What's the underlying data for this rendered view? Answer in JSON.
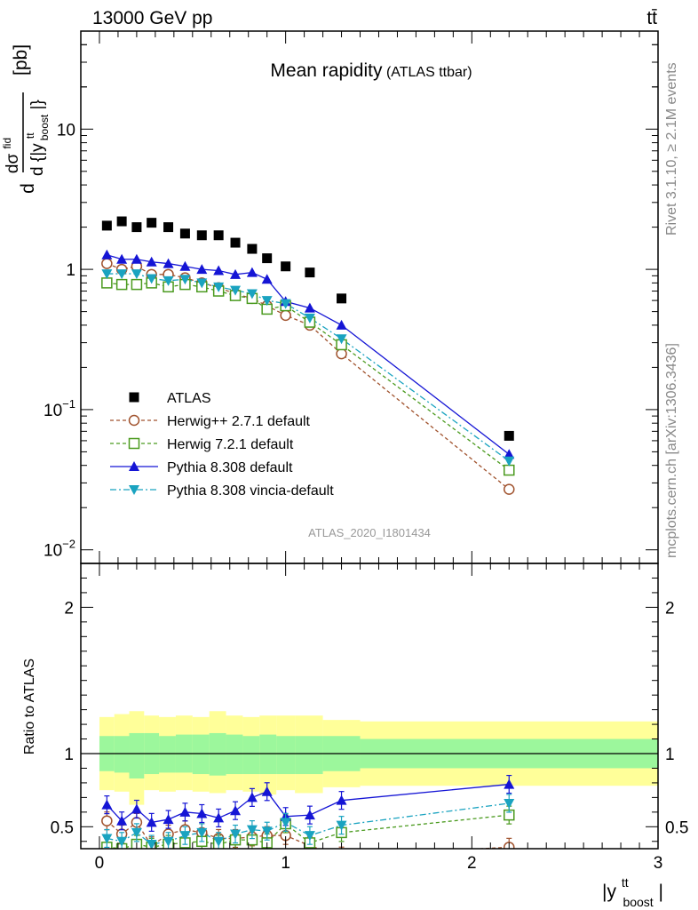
{
  "header": {
    "energy": "13000 GeV pp",
    "process": "tt̄",
    "side_rivet": "Rivet 3.1.10, ≥ 2.1M events",
    "side_site": "mcplots.cern.ch [arXiv:1306.3436]"
  },
  "chart_data": [
    {
      "type": "line",
      "title": "Mean rapidity",
      "subtitle": "(ATLAS ttbar)",
      "analysis": "ATLAS_2020_I1801434",
      "ylabel_parts": {
        "d": "d",
        "sigma": "dσ",
        "sigma_sup": "fid",
        "denom": "d {|y",
        "denom_sup": "tt",
        "denom_sub": "boost",
        "denom_end": "|}",
        "unit": "[pb]"
      },
      "xlabel_parts": {
        "main": "|y",
        "sup": "tt",
        "sub": "boost",
        "end": "|"
      },
      "yscale": "log",
      "xlim": [
        -0.1,
        3.0
      ],
      "ylim": [
        0.008,
        50
      ],
      "yticks": [
        {
          "v": 0.01,
          "base": "10",
          "exp": "−2"
        },
        {
          "v": 0.1,
          "base": "10",
          "exp": "−1"
        },
        {
          "v": 1,
          "base": "1",
          "exp": ""
        },
        {
          "v": 10,
          "base": "10",
          "exp": ""
        }
      ],
      "xticks": [
        0,
        1,
        2,
        3
      ],
      "x": [
        0.04,
        0.12,
        0.2,
        0.28,
        0.37,
        0.46,
        0.55,
        0.64,
        0.73,
        0.82,
        0.9,
        1.0,
        1.13,
        1.3,
        2.2
      ],
      "series": [
        {
          "name": "ATLAS",
          "color": "#000000",
          "marker": "square-filled",
          "line": "none",
          "values": [
            2.05,
            2.2,
            2.0,
            2.15,
            2.0,
            1.8,
            1.75,
            1.75,
            1.55,
            1.4,
            1.2,
            1.05,
            0.95,
            0.62,
            0.065
          ]
        },
        {
          "name": "Herwig++ 2.7.1 default",
          "color": "#a0522d",
          "marker": "circle-open",
          "line": "dashed",
          "values": [
            1.1,
            1.0,
            1.05,
            0.92,
            0.92,
            0.87,
            0.8,
            0.74,
            0.67,
            0.62,
            0.55,
            0.47,
            0.4,
            0.25,
            0.027
          ]
        },
        {
          "name": "Herwig 7.2.1 default",
          "color": "#4a9a1e",
          "marker": "square-open",
          "line": "dashed",
          "values": [
            0.8,
            0.78,
            0.78,
            0.8,
            0.75,
            0.78,
            0.75,
            0.7,
            0.65,
            0.62,
            0.52,
            0.55,
            0.42,
            0.29,
            0.037
          ]
        },
        {
          "name": "Pythia 8.308 default",
          "color": "#1515d5",
          "marker": "triangle-up",
          "line": "solid",
          "values": [
            1.27,
            1.18,
            1.18,
            1.13,
            1.1,
            1.05,
            1.0,
            0.98,
            0.92,
            0.95,
            0.85,
            0.59,
            0.53,
            0.4,
            0.048
          ]
        },
        {
          "name": "Pythia 8.308 vincia-default",
          "color": "#1aa3c0",
          "marker": "triangle-down",
          "line": "dashdot",
          "values": [
            0.93,
            0.93,
            0.93,
            0.86,
            0.83,
            0.85,
            0.8,
            0.75,
            0.71,
            0.67,
            0.6,
            0.57,
            0.45,
            0.32,
            0.043
          ]
        }
      ]
    },
    {
      "type": "line",
      "ylabel": "Ratio to ATLAS",
      "ylim": [
        0.35,
        2.3
      ],
      "yticks": [
        0.5,
        1,
        2
      ],
      "xlim": [
        -0.1,
        3.0
      ],
      "xticks": [
        0,
        1,
        2,
        3
      ],
      "x": [
        0.04,
        0.12,
        0.2,
        0.28,
        0.37,
        0.46,
        0.55,
        0.64,
        0.73,
        0.82,
        0.9,
        1.0,
        1.13,
        1.3,
        2.2
      ],
      "band_edges": [
        0.0,
        0.08,
        0.16,
        0.24,
        0.32,
        0.41,
        0.5,
        0.59,
        0.68,
        0.77,
        0.86,
        0.95,
        1.05,
        1.2,
        1.4,
        3.0
      ],
      "band_inner": [
        [
          0.88,
          1.12
        ],
        [
          0.87,
          1.12
        ],
        [
          0.83,
          1.14
        ],
        [
          0.86,
          1.14
        ],
        [
          0.87,
          1.12
        ],
        [
          0.87,
          1.13
        ],
        [
          0.86,
          1.13
        ],
        [
          0.85,
          1.14
        ],
        [
          0.86,
          1.13
        ],
        [
          0.86,
          1.12
        ],
        [
          0.86,
          1.13
        ],
        [
          0.86,
          1.12
        ],
        [
          0.86,
          1.12
        ],
        [
          0.88,
          1.12
        ],
        [
          0.9,
          1.1
        ]
      ],
      "band_outer": [
        [
          0.75,
          1.25
        ],
        [
          0.74,
          1.27
        ],
        [
          0.65,
          1.29
        ],
        [
          0.75,
          1.26
        ],
        [
          0.74,
          1.25
        ],
        [
          0.75,
          1.26
        ],
        [
          0.74,
          1.25
        ],
        [
          0.73,
          1.29
        ],
        [
          0.75,
          1.26
        ],
        [
          0.74,
          1.25
        ],
        [
          0.72,
          1.26
        ],
        [
          0.75,
          1.26
        ],
        [
          0.73,
          1.26
        ],
        [
          0.77,
          1.23
        ],
        [
          0.78,
          1.22
        ]
      ],
      "series": [
        {
          "name": "Herwig++ 2.7.1 default",
          "color": "#a0522d",
          "marker": "circle-open",
          "line": "dashed",
          "values": [
            0.54,
            0.45,
            0.53,
            0.37,
            0.45,
            0.48,
            0.46,
            0.42,
            0.42,
            0.43,
            0.44,
            0.44,
            0.37,
            0.3,
            0.36
          ]
        },
        {
          "name": "Herwig 7.2.1 default",
          "color": "#4a9a1e",
          "marker": "square-open",
          "line": "dashed",
          "values": [
            0.36,
            0.35,
            0.38,
            0.36,
            0.38,
            0.39,
            0.4,
            0.38,
            0.41,
            0.41,
            0.39,
            0.52,
            0.39,
            0.46,
            0.58
          ]
        },
        {
          "name": "Pythia 8.308 default",
          "color": "#1515d5",
          "marker": "triangle-up",
          "line": "solid",
          "values": [
            0.65,
            0.54,
            0.62,
            0.53,
            0.55,
            0.6,
            0.59,
            0.56,
            0.61,
            0.7,
            0.74,
            0.57,
            0.58,
            0.68,
            0.79
          ]
        },
        {
          "name": "Pythia 8.308 vincia-default",
          "color": "#1aa3c0",
          "marker": "triangle-down",
          "line": "dashdot",
          "values": [
            0.42,
            0.4,
            0.46,
            0.38,
            0.4,
            0.44,
            0.46,
            0.4,
            0.45,
            0.48,
            0.47,
            0.53,
            0.44,
            0.51,
            0.66
          ]
        }
      ]
    }
  ]
}
